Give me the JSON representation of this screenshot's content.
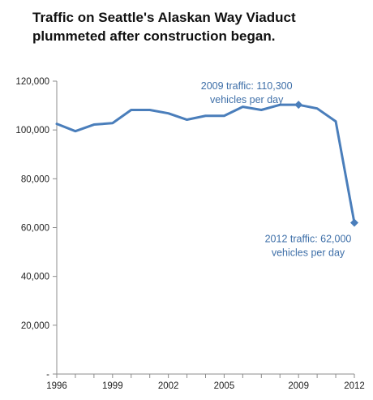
{
  "chart_data": {
    "type": "line",
    "title": "Traffic on Seattle's Alaskan Way Viaduct plummeted after construction began.",
    "xlabel": "",
    "ylabel": "",
    "x": [
      1996,
      1997,
      1998,
      1999,
      2000,
      2001,
      2002,
      2003,
      2004,
      2005,
      2006,
      2007,
      2008,
      2009,
      2010,
      2011,
      2012
    ],
    "series": [
      {
        "values": [
          102500,
          99500,
          102200,
          102800,
          108200,
          108200,
          106800,
          104200,
          105800,
          105800,
          109500,
          108200,
          110300,
          110300,
          108800,
          103500,
          62000
        ]
      }
    ],
    "xlim": [
      1996,
      2012
    ],
    "ylim": [
      0,
      120000
    ],
    "x_ticks": [
      "1996",
      "1999",
      "2002",
      "2005",
      "2009",
      "2012"
    ],
    "y_ticks": [
      "-",
      "20,000",
      "40,000",
      "60,000",
      "80,000",
      "100,000",
      "120,000"
    ],
    "grid": false,
    "markers": [
      {
        "x": 2009,
        "y": 110300
      },
      {
        "x": 2012,
        "y": 62000
      }
    ],
    "annotations": [
      {
        "x": 2009,
        "y": 110300,
        "line1": "2009 traffic: 110,300",
        "line2": "vehicles per day"
      },
      {
        "x": 2012,
        "y": 62000,
        "line1": "2012 traffic: 62,000",
        "line2": "vehicles per day"
      }
    ],
    "colors": {
      "line": "#4a7ebb",
      "annotation": "#3e6fa8",
      "axis": "#8c8c8c"
    }
  }
}
